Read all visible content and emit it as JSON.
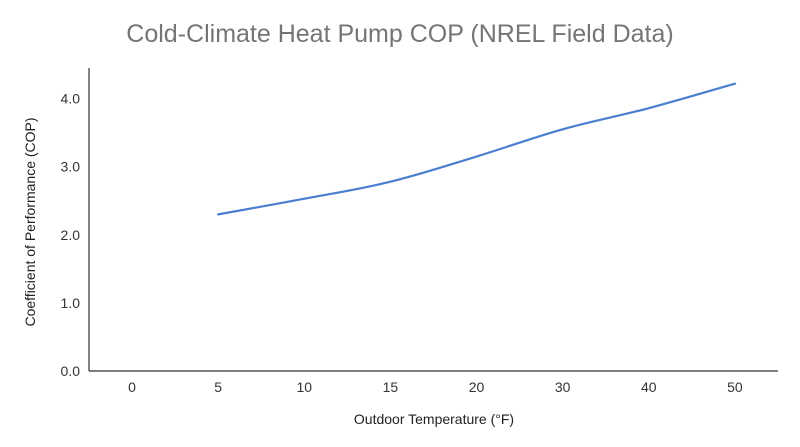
{
  "chart_data": {
    "type": "line",
    "title": "Cold-Climate Heat Pump COP (NREL Field Data)",
    "xlabel": "Outdoor Temperature (°F)",
    "ylabel": "Coefficient of Performance (COP)",
    "categories": [
      "0",
      "5",
      "10",
      "15",
      "20",
      "30",
      "40",
      "50"
    ],
    "x_tick_labels": [
      "0",
      "5",
      "10",
      "15",
      "20",
      "30",
      "40",
      "50"
    ],
    "y_tick_labels": [
      "0.0",
      "1.0",
      "2.0",
      "3.0",
      "4.0"
    ],
    "y_ticks": [
      0,
      1,
      2,
      3,
      4
    ],
    "ylim": [
      0,
      4.45
    ],
    "series": [
      {
        "color": "#4a7fd0",
        "values": [
          null,
          2.3,
          2.53,
          2.78,
          3.15,
          3.55,
          3.86,
          4.22
        ]
      }
    ],
    "grid": false,
    "legend": "none"
  }
}
